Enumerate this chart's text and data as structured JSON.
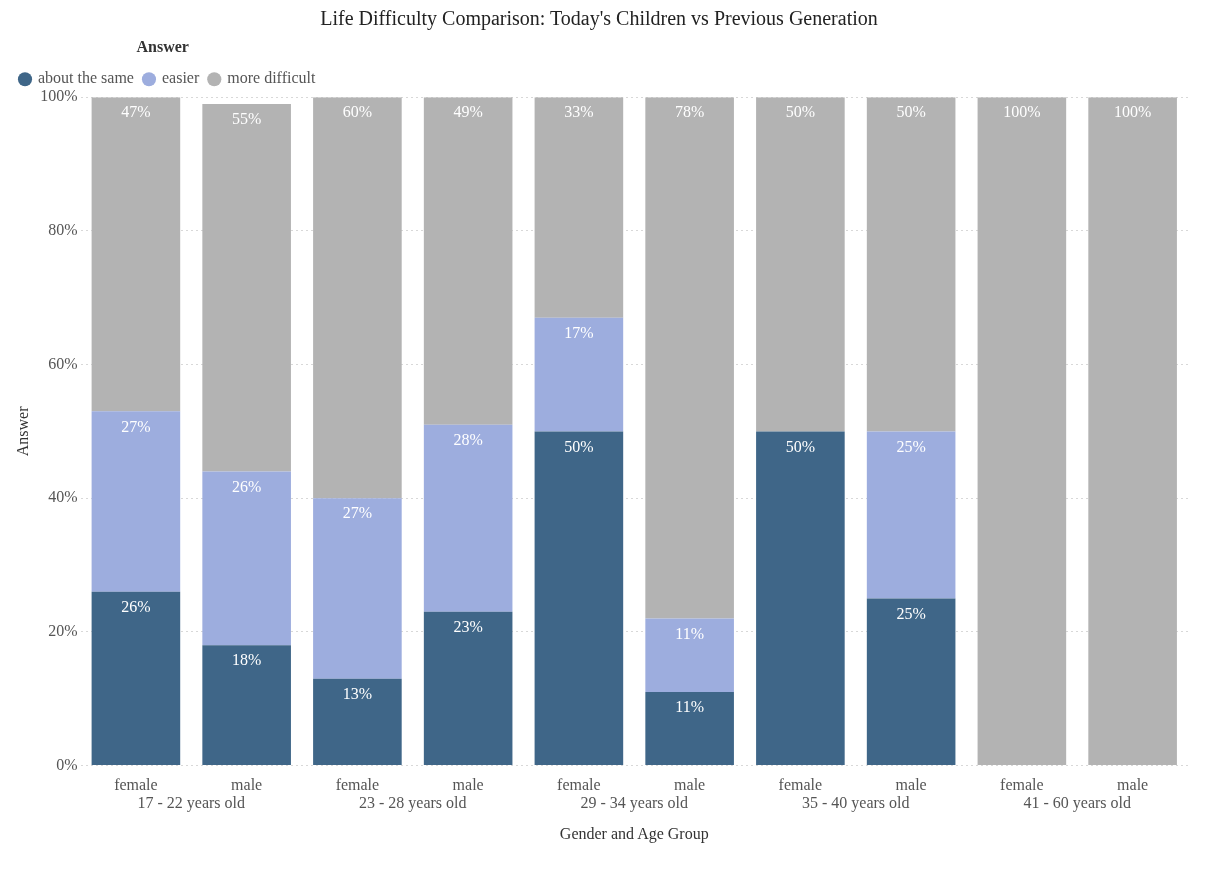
{
  "chart_data": {
    "type": "bar",
    "title": "Life Difficulty Comparison: Today's Children vs Previous Generation",
    "xlabel": "Gender and Age Group",
    "ylabel": "Answer",
    "legend_title": "Answer",
    "categories": [
      "female",
      "male",
      "female",
      "male",
      "female",
      "male",
      "female",
      "male",
      "female",
      "male"
    ],
    "annotations": [
      "17 - 22 years old",
      "23 - 28 years old",
      "29 - 34 years old",
      "35 - 40 years old",
      "41 - 60 years old"
    ],
    "series": [
      {
        "name": "about the same",
        "color": "#3f6688",
        "values": [
          26,
          18,
          13,
          23,
          50,
          11,
          50,
          25,
          null,
          null
        ],
        "value_labels": [
          "26%",
          "18%",
          "13%",
          "23%",
          "50%",
          "11%",
          "50%",
          "25%",
          null,
          null
        ]
      },
      {
        "name": "easier",
        "color": "#9dadde",
        "values": [
          27,
          26,
          27,
          28,
          17,
          11,
          null,
          25,
          null,
          null
        ],
        "value_labels": [
          "27%",
          "26%",
          "27%",
          "28%",
          "17%",
          "11%",
          null,
          "25%",
          null,
          null
        ]
      },
      {
        "name": "more difficult",
        "color": "#b3b3b3",
        "values": [
          47,
          55,
          60,
          49,
          33,
          78,
          50,
          50,
          100,
          100
        ],
        "value_labels": [
          "47%",
          "55%",
          "60%",
          "49%",
          "33%",
          "78%",
          "50%",
          "50%",
          "100%",
          "100%"
        ]
      }
    ],
    "stacked": true,
    "ylim": [
      0,
      100
    ],
    "yticks": [
      {
        "value": 0,
        "label": "0%"
      },
      {
        "value": 20,
        "label": "20%"
      },
      {
        "value": 40,
        "label": "40%"
      },
      {
        "value": 60,
        "label": "60%"
      },
      {
        "value": 80,
        "label": "80%"
      },
      {
        "value": 100,
        "label": "100%"
      }
    ],
    "grid": "y",
    "legend": "top left"
  }
}
